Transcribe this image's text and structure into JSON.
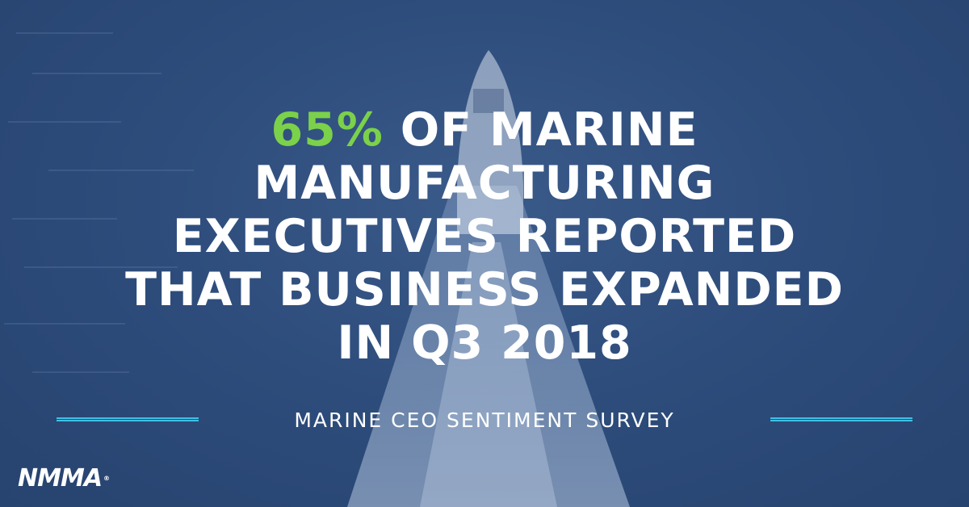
{
  "headline": {
    "accent": "65%",
    "line1_rest": " OF MARINE",
    "line2": "MANUFACTURING",
    "line3": "EXECUTIVES REPORTED",
    "line4": "THAT BUSINESS EXPANDED",
    "line5": "IN Q3 2018"
  },
  "subtitle": "MARINE CEO SENTIMENT SURVEY",
  "logo": {
    "text": "NMMA",
    "reg": "®"
  },
  "colors": {
    "accent": "#7bd14a",
    "rule": "#3fc0e6",
    "overlay": "#2e4d7c",
    "text": "#ffffff"
  }
}
